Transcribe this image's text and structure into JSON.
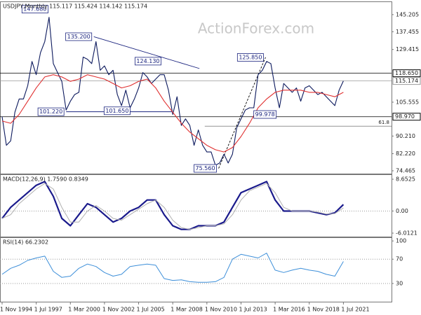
{
  "chart_data": [
    {
      "type": "line",
      "title": "USDJPY,Monthly 115.117 115.424 114.142 115.174",
      "watermark": "ActionForex.com",
      "ylim": [
        73.2,
        151.2
      ],
      "yticks": [
        145.205,
        137.455,
        129.415,
        105.555,
        {
          "value": 90.21,
          "label": "90.210"
        },
        {
          "value": 82.22,
          "label": "82.220"
        },
        74.465
      ],
      "series": [
        {
          "color": "#0d1a5e",
          "x": [
            "1994-11",
            "1995-03",
            "1995-07",
            "1995-11",
            "1996-03",
            "1996-07",
            "1996-11",
            "1997-03",
            "1997-07",
            "1997-11",
            "1998-03",
            "1998-07",
            "1998-11",
            "1999-03",
            "1999-07",
            "1999-11",
            "2000-03",
            "2000-07",
            "2000-11",
            "2001-03",
            "2001-07",
            "2001-11",
            "2002-03",
            "2002-07",
            "2002-11",
            "2003-03",
            "2003-07",
            "2003-11",
            "2004-03",
            "2004-07",
            "2004-11",
            "2005-03",
            "2005-07",
            "2005-11",
            "2006-03",
            "2006-07",
            "2006-11",
            "2007-03",
            "2007-07",
            "2007-11",
            "2008-03",
            "2008-07",
            "2008-11",
            "2009-03",
            "2009-07",
            "2009-11",
            "2010-03",
            "2010-07",
            "2010-11",
            "2011-03",
            "2011-07",
            "2011-11",
            "2012-03",
            "2012-07",
            "2012-11",
            "2013-03",
            "2013-07",
            "2013-11",
            "2014-03",
            "2014-07",
            "2014-11",
            "2015-03",
            "2015-07",
            "2015-11",
            "2016-03",
            "2016-07",
            "2016-11",
            "2017-03",
            "2017-07",
            "2017-11",
            "2018-03",
            "2018-07",
            "2018-11",
            "2019-03",
            "2019-07",
            "2019-11",
            "2020-03",
            "2020-07",
            "2020-11",
            "2021-03",
            "2021-07"
          ],
          "values": [
            99,
            86,
            88,
            101,
            107,
            107,
            113,
            124,
            118,
            128,
            133,
            144,
            123,
            119,
            115,
            102,
            106,
            109,
            110,
            126,
            125,
            123,
            133,
            120,
            122,
            118,
            120,
            109,
            104,
            111,
            103,
            107,
            112,
            119,
            117,
            114,
            116,
            118,
            118,
            111,
            100,
            108,
            95,
            98,
            95,
            86,
            93,
            86,
            83,
            83,
            77,
            78,
            82,
            78,
            82,
            94,
            98,
            102,
            103,
            103,
            118,
            120,
            124,
            123,
            112,
            103,
            114,
            112,
            110,
            112,
            106,
            112,
            113,
            111,
            109,
            110,
            108,
            106,
            104,
            111,
            115.174
          ]
        },
        {
          "color": "#e03030",
          "x": [
            "1994-11",
            "1995-07",
            "1996-03",
            "1996-11",
            "1997-07",
            "1998-03",
            "1998-11",
            "1999-07",
            "2000-03",
            "2000-11",
            "2001-07",
            "2002-03",
            "2002-11",
            "2003-07",
            "2004-03",
            "2004-11",
            "2005-07",
            "2006-03",
            "2006-11",
            "2007-07",
            "2008-03",
            "2008-11",
            "2009-07",
            "2010-03",
            "2010-11",
            "2011-07",
            "2012-03",
            "2012-11",
            "2013-07",
            "2014-03",
            "2014-11",
            "2015-07",
            "2016-03",
            "2016-11",
            "2017-07",
            "2018-03",
            "2018-11",
            "2019-07",
            "2020-03",
            "2020-11",
            "2021-07"
          ],
          "values": [
            97,
            96,
            100,
            106,
            112,
            117,
            118,
            117,
            115,
            116,
            118,
            117,
            116,
            114,
            112,
            113,
            115,
            116,
            112,
            106,
            101,
            96,
            92,
            89,
            86,
            84,
            83,
            85,
            90,
            96,
            103,
            107,
            110,
            111,
            111,
            111,
            110,
            110,
            109,
            108,
            110
          ]
        }
      ],
      "levels": [
        {
          "value": 118.65,
          "label": "118.650",
          "color": "#000000"
        },
        {
          "value": 115.174,
          "label": "115.174",
          "color": "#9a9a9a"
        },
        {
          "value": 98.97,
          "label": "98.970",
          "color": "#000000"
        }
      ],
      "fib": {
        "name": "61.8",
        "value": 94.7,
        "from": "2010-09",
        "color": "#555555"
      },
      "annotations": [
        {
          "label": "147.680",
          "x": "1998-08",
          "y": 147.68
        },
        {
          "label": "135.200",
          "x": "2002-01",
          "y": 135.2
        },
        {
          "label": "124.130",
          "x": "2007-06",
          "y": 124.13
        },
        {
          "label": "125.850",
          "x": "2015-06",
          "y": 125.85
        },
        {
          "label": "101.220",
          "x": "1999-11",
          "y": 101.22
        },
        {
          "label": "101.650",
          "x": "2005-01",
          "y": 101.65
        },
        {
          "label": "99.978",
          "x": "2016-06",
          "y": 99.978
        },
        {
          "label": "75.560",
          "x": "2011-10",
          "y": 75.56
        }
      ],
      "trendlines": [
        {
          "x": [
            "2002-01",
            "2010-04"
          ],
          "y": [
            135.2,
            120.8
          ],
          "color": "#1a237e",
          "style": "solid"
        },
        {
          "x": [
            "1999-11",
            "2008-03"
          ],
          "y": [
            101.22,
            101.22
          ],
          "color": "#1a237e",
          "style": "solid"
        },
        {
          "x": [
            "2011-10",
            "2015-06"
          ],
          "y": [
            75.56,
            125.85
          ],
          "color": "#000000",
          "style": "dashed"
        }
      ]
    },
    {
      "type": "line",
      "title": "MACD(12,26,9) 1.7590 0.8349",
      "ylim": [
        -6.96,
        9.99
      ],
      "yticks": [
        8.6525,
        {
          "value": 0,
          "label": "0.00"
        },
        -6.0121
      ],
      "zero_line": true,
      "series": [
        {
          "color": "#1a1a8c",
          "width": 2.2,
          "x": [
            "1994-11",
            "1995-07",
            "1996-03",
            "1996-11",
            "1997-07",
            "1998-03",
            "1998-11",
            "1999-07",
            "2000-03",
            "2000-11",
            "2001-07",
            "2002-03",
            "2002-11",
            "2003-07",
            "2004-03",
            "2004-11",
            "2005-07",
            "2006-03",
            "2006-11",
            "2007-07",
            "2008-03",
            "2008-11",
            "2009-07",
            "2010-03",
            "2010-11",
            "2011-07",
            "2012-03",
            "2012-11",
            "2013-07",
            "2014-03",
            "2014-11",
            "2015-07",
            "2016-03",
            "2016-11",
            "2017-07",
            "2018-03",
            "2018-11",
            "2019-07",
            "2020-03",
            "2020-11",
            "2021-07"
          ],
          "values": [
            -2,
            1,
            3,
            5,
            7,
            8,
            4,
            -2,
            -4,
            -1,
            2,
            1,
            -1,
            -3,
            -2,
            0,
            1,
            3,
            3,
            -1,
            -4,
            -5,
            -5,
            -4,
            -4,
            -4,
            -3,
            1,
            5,
            6,
            7,
            8,
            3,
            0,
            0,
            0,
            0,
            -0.5,
            -1,
            -0.5,
            1.759
          ]
        },
        {
          "color": "#b0b0b0",
          "width": 1,
          "x": [
            "1994-11",
            "1995-07",
            "1996-03",
            "1996-11",
            "1997-07",
            "1998-03",
            "1998-11",
            "1999-07",
            "2000-03",
            "2000-11",
            "2001-07",
            "2002-03",
            "2002-11",
            "2003-07",
            "2004-03",
            "2004-11",
            "2005-07",
            "2006-03",
            "2006-11",
            "2007-07",
            "2008-03",
            "2008-11",
            "2009-07",
            "2010-03",
            "2010-11",
            "2011-07",
            "2012-03",
            "2012-11",
            "2013-07",
            "2014-03",
            "2014-11",
            "2015-07",
            "2016-03",
            "2016-11",
            "2017-07",
            "2018-03",
            "2018-11",
            "2019-07",
            "2020-03",
            "2020-11",
            "2021-07"
          ],
          "values": [
            -2,
            -1,
            2,
            4,
            6,
            7.5,
            6,
            1,
            -3,
            -3,
            0,
            1.5,
            0,
            -2,
            -2.5,
            -1,
            0.5,
            2,
            3,
            1,
            -2.5,
            -4.5,
            -5,
            -4.5,
            -4,
            -4,
            -3.5,
            -1,
            3,
            5.5,
            6.5,
            7.5,
            5,
            1,
            0,
            0,
            0,
            -0.3,
            -0.8,
            -0.7,
            0.8349
          ]
        }
      ]
    },
    {
      "type": "line",
      "title": "RSI(14) 66.2302",
      "ylim": [
        0,
        106
      ],
      "yticks": [
        100,
        70,
        30
      ],
      "dotted_levels": [
        70,
        30
      ],
      "xticks": [
        {
          "value": "1994-11",
          "label": "1 Nov 1994"
        },
        {
          "value": "1997-07",
          "label": "1 Jul 1997"
        },
        {
          "value": "2000-03",
          "label": "1 Mar 2000"
        },
        {
          "value": "2002-11",
          "label": "1 Nov 2002"
        },
        {
          "value": "2005-07",
          "label": "1 Jul 2005"
        },
        {
          "value": "2008-03",
          "label": "1 Mar 2008"
        },
        {
          "value": "2010-11",
          "label": "1 Nov 2010"
        },
        {
          "value": "2013-07",
          "label": "1 Jul 2013"
        },
        {
          "value": "2016-03",
          "label": "1 Mar 2016"
        },
        {
          "value": "2018-11",
          "label": "1 Nov 2018"
        },
        {
          "value": "2021-07",
          "label": "1 Jul 2021"
        }
      ],
      "series": [
        {
          "color": "#3d8fd9",
          "width": 1,
          "x": [
            "1994-11",
            "1995-07",
            "1996-03",
            "1996-11",
            "1997-07",
            "1998-03",
            "1998-11",
            "1999-07",
            "2000-03",
            "2000-11",
            "2001-07",
            "2002-03",
            "2002-11",
            "2003-07",
            "2004-03",
            "2004-11",
            "2005-07",
            "2006-03",
            "2006-11",
            "2007-07",
            "2008-03",
            "2008-11",
            "2009-07",
            "2010-03",
            "2010-11",
            "2011-07",
            "2012-03",
            "2012-11",
            "2013-07",
            "2014-03",
            "2014-11",
            "2015-07",
            "2016-03",
            "2016-11",
            "2017-07",
            "2018-03",
            "2018-11",
            "2019-07",
            "2020-03",
            "2020-11",
            "2021-07"
          ],
          "values": [
            45,
            55,
            60,
            68,
            72,
            75,
            50,
            40,
            42,
            55,
            62,
            58,
            48,
            42,
            45,
            58,
            60,
            62,
            60,
            38,
            35,
            36,
            33,
            32,
            32,
            33,
            40,
            70,
            78,
            75,
            72,
            80,
            52,
            48,
            52,
            55,
            52,
            50,
            45,
            42,
            66.2302
          ]
        }
      ]
    }
  ]
}
